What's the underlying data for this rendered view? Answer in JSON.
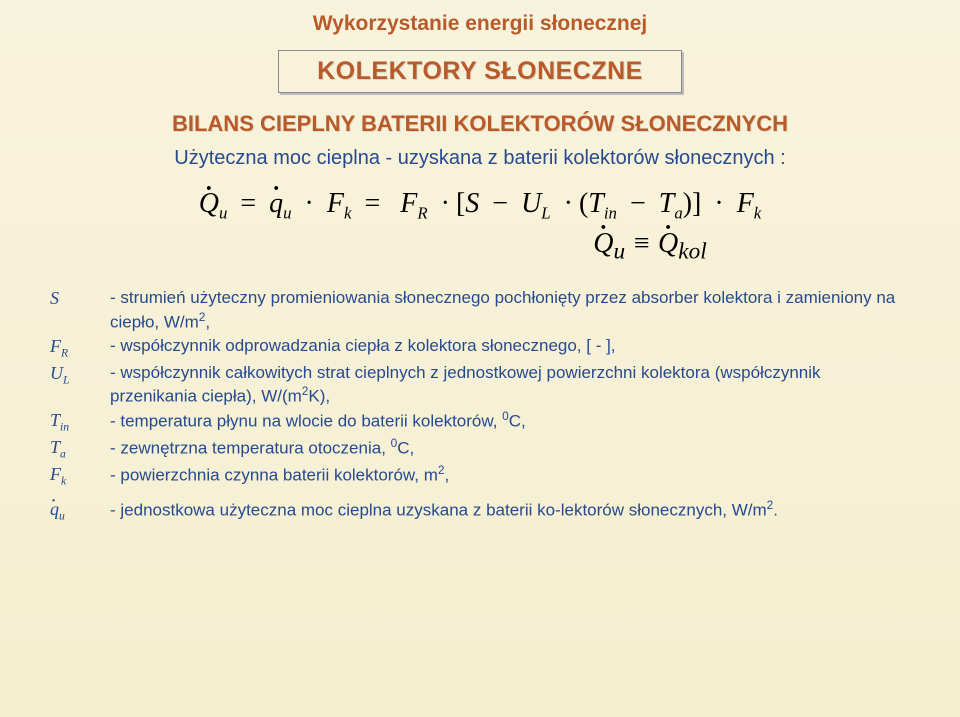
{
  "supertitle": "Wykorzystanie energii słonecznej",
  "title": "KOLEKTORY SŁONECZNE",
  "section_title": "BILANS CIEPLNY BATERII KOLEKTORÓW SŁONECZNYCH",
  "intro": "Użyteczna moc cieplna -  uzyskana z baterii kolektorów słonecznych :",
  "formula": {
    "lhs_var": "Q",
    "lhs_sub": "u",
    "rhs1_var": "q",
    "rhs1_sub": "u",
    "fk_var": "F",
    "fk_sub": "k",
    "fr_var": "F",
    "fr_sub": "R",
    "s": "S",
    "ul_var": "U",
    "ul_sub": "L",
    "tin_var": "T",
    "tin_sub": "in",
    "ta_var": "T",
    "ta_sub": "a",
    "q2_var": "Q",
    "q2_sub": "u",
    "qkol_var": "Q",
    "qkol_sub": "kol"
  },
  "defs": [
    {
      "sym_html": "S",
      "txt": "- strumień użyteczny promieniowania słonecznego pochłonięty   przez absorber kolektora i  zamieniony na ciepło,  W/m<sup>2</sup>,"
    },
    {
      "sym_html": "F<sub>R</sub>",
      "txt": "- współczynnik odprowadzania ciepła z kolektora słonecznego,  [ - ],"
    },
    {
      "sym_html": "U<sub>L</sub>",
      "txt": "- współczynnik całkowitych strat cieplnych z jednostkowej powierzchni kolektora (współczynnik przenikania ciepła),  W/(m<sup>2</sup>K),"
    },
    {
      "sym_html": "T<sub>in</sub>",
      "txt": "- temperatura płynu na wlocie do baterii kolektorów,  <sup>0</sup>C,"
    },
    {
      "sym_html": "T<sub>a</sub>",
      "txt": "- zewnętrzna temperatura otoczenia, <sup>0</sup>C,"
    },
    {
      "sym_html": "F<sub>k</sub>",
      "txt": "- powierzchnia czynna baterii kolektorów,  m<sup>2</sup>,"
    },
    {
      "sym_html": "<span class=\"qdot\">q</span><sub>u</sub>",
      "txt": "- jednostkowa użyteczna moc cieplna uzyskana z baterii ko-lektorów słonecznych, W/m<sup>2</sup>."
    }
  ],
  "colors": {
    "accent": "#b85a2a",
    "text_body": "#264a8f",
    "bg_top": "#f8f3dc",
    "bg_bottom": "#f5eed0"
  }
}
